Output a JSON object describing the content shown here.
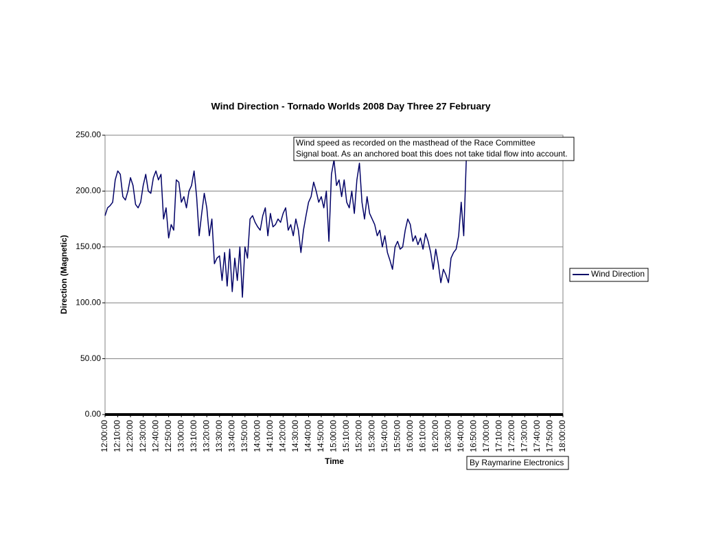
{
  "chart_data": {
    "type": "line",
    "title": "Wind Direction - Tornado Worlds 2008 Day Three 27 February",
    "x_label": "Time",
    "y_label": "Direction (Magnetic)",
    "annotation": [
      "Wind speed as recorded on the masthead of the Race Committee",
      "Signal boat. As an anchored boat this does not take tidal flow into account."
    ],
    "credit": "By Raymarine Electronics",
    "legend": "right",
    "grid": true,
    "xlim": [
      "12:00:00",
      "18:00:00"
    ],
    "xticks": [
      "12:00:00",
      "12:10:00",
      "12:20:00",
      "12:30:00",
      "12:40:00",
      "12:50:00",
      "13:00:00",
      "13:10:00",
      "13:20:00",
      "13:30:00",
      "13:40:00",
      "13:50:00",
      "14:00:00",
      "14:10:00",
      "14:20:00",
      "14:30:00",
      "14:40:00",
      "14:50:00",
      "15:00:00",
      "15:10:00",
      "15:20:00",
      "15:30:00",
      "15:40:00",
      "15:50:00",
      "16:00:00",
      "16:10:00",
      "16:20:00",
      "16:30:00",
      "16:40:00",
      "16:50:00",
      "17:00:00",
      "17:10:00",
      "17:20:00",
      "17:30:00",
      "17:40:00",
      "17:50:00",
      "18:00:00"
    ],
    "ylim": [
      0,
      250
    ],
    "yticks": [
      {
        "value": 0,
        "label": "0.00"
      },
      {
        "value": 50,
        "label": "50.00"
      },
      {
        "value": 100,
        "label": "100.00"
      },
      {
        "value": 150,
        "label": "150.00"
      },
      {
        "value": 200,
        "label": "200.00"
      },
      {
        "value": 250,
        "label": "250.00"
      }
    ],
    "series": [
      {
        "name": "Wind Direction",
        "color": "#000066",
        "x": [
          "12:00:00",
          "12:02:00",
          "12:04:00",
          "12:06:00",
          "12:08:00",
          "12:10:00",
          "12:12:00",
          "12:14:00",
          "12:16:00",
          "12:18:00",
          "12:20:00",
          "12:22:00",
          "12:24:00",
          "12:26:00",
          "12:28:00",
          "12:30:00",
          "12:32:00",
          "12:34:00",
          "12:36:00",
          "12:38:00",
          "12:40:00",
          "12:42:00",
          "12:44:00",
          "12:46:00",
          "12:48:00",
          "12:50:00",
          "12:52:00",
          "12:54:00",
          "12:56:00",
          "12:58:00",
          "13:00:00",
          "13:02:00",
          "13:04:00",
          "13:06:00",
          "13:08:00",
          "13:10:00",
          "13:12:00",
          "13:14:00",
          "13:16:00",
          "13:18:00",
          "13:20:00",
          "13:22:00",
          "13:24:00",
          "13:26:00",
          "13:28:00",
          "13:30:00",
          "13:32:00",
          "13:34:00",
          "13:36:00",
          "13:38:00",
          "13:40:00",
          "13:42:00",
          "13:44:00",
          "13:46:00",
          "13:48:00",
          "13:50:00",
          "13:52:00",
          "13:54:00",
          "13:56:00",
          "13:58:00",
          "14:00:00",
          "14:02:00",
          "14:04:00",
          "14:06:00",
          "14:08:00",
          "14:10:00",
          "14:12:00",
          "14:14:00",
          "14:16:00",
          "14:18:00",
          "14:20:00",
          "14:22:00",
          "14:24:00",
          "14:26:00",
          "14:28:00",
          "14:30:00",
          "14:32:00",
          "14:34:00",
          "14:36:00",
          "14:38:00",
          "14:40:00",
          "14:42:00",
          "14:44:00",
          "14:46:00",
          "14:48:00",
          "14:50:00",
          "14:52:00",
          "14:54:00",
          "14:56:00",
          "14:58:00",
          "15:00:00",
          "15:02:00",
          "15:04:00",
          "15:06:00",
          "15:08:00",
          "15:10:00",
          "15:12:00",
          "15:14:00",
          "15:16:00",
          "15:18:00",
          "15:20:00",
          "15:22:00",
          "15:24:00",
          "15:26:00",
          "15:28:00",
          "15:30:00",
          "15:32:00",
          "15:34:00",
          "15:36:00",
          "15:38:00",
          "15:40:00",
          "15:42:00",
          "15:44:00",
          "15:46:00",
          "15:48:00",
          "15:50:00",
          "15:52:00",
          "15:54:00",
          "15:56:00",
          "15:58:00",
          "16:00:00",
          "16:02:00",
          "16:04:00",
          "16:06:00",
          "16:08:00",
          "16:10:00",
          "16:12:00",
          "16:14:00",
          "16:16:00",
          "16:18:00",
          "16:20:00",
          "16:22:00",
          "16:24:00",
          "16:26:00",
          "16:28:00",
          "16:30:00",
          "16:32:00",
          "16:34:00",
          "16:36:00",
          "16:38:00",
          "16:40:00",
          "16:42:00",
          "16:44:00"
        ],
        "values": [
          178,
          185,
          187,
          190,
          210,
          218,
          215,
          195,
          192,
          200,
          212,
          205,
          188,
          185,
          190,
          205,
          215,
          200,
          198,
          212,
          218,
          210,
          215,
          175,
          185,
          158,
          170,
          165,
          210,
          208,
          190,
          195,
          185,
          200,
          205,
          218,
          195,
          160,
          180,
          198,
          185,
          160,
          175,
          135,
          140,
          142,
          120,
          145,
          115,
          148,
          110,
          140,
          120,
          150,
          105,
          150,
          140,
          175,
          178,
          172,
          168,
          165,
          178,
          185,
          160,
          180,
          168,
          170,
          175,
          172,
          180,
          185,
          165,
          170,
          160,
          175,
          165,
          145,
          165,
          178,
          190,
          195,
          208,
          200,
          190,
          195,
          185,
          200,
          155,
          215,
          228,
          205,
          210,
          195,
          210,
          190,
          185,
          200,
          180,
          210,
          225,
          190,
          175,
          195,
          180,
          175,
          170,
          160,
          165,
          150,
          160,
          145,
          138,
          130,
          150,
          155,
          148,
          150,
          165,
          175,
          170,
          155,
          160,
          152,
          158,
          148,
          162,
          155,
          145,
          130,
          148,
          135,
          118,
          130,
          125,
          118,
          140,
          145,
          148,
          160,
          190,
          160,
          228
        ]
      }
    ]
  }
}
